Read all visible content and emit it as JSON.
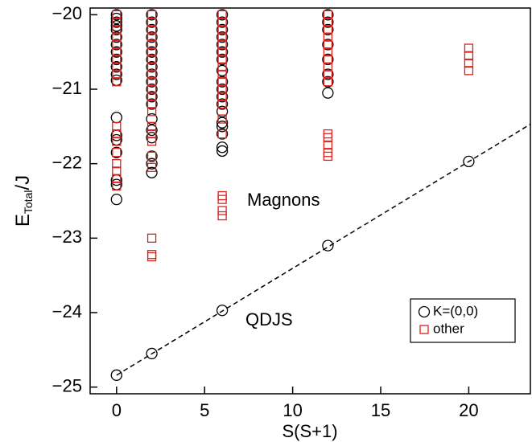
{
  "chart_data": {
    "type": "scatter",
    "xlabel": "S(S+1)",
    "ylabel": {
      "base": "E",
      "subscript": "Total",
      "rest": "/J"
    },
    "xlim": [
      -1.5,
      23.5
    ],
    "ylim": [
      -25.09,
      -19.91
    ],
    "xticks": [
      0,
      5,
      10,
      15,
      20
    ],
    "yticks": [
      {
        "value": -25,
        "label": "−25"
      },
      {
        "value": -24,
        "label": "−24"
      },
      {
        "value": -23,
        "label": "−23"
      },
      {
        "value": -22,
        "label": "−22"
      },
      {
        "value": -21,
        "label": "−21"
      },
      {
        "value": -20,
        "label": "−20"
      }
    ],
    "legend": "lower right",
    "annotations": [
      "Magnons",
      "QDJS"
    ],
    "reference_line": {
      "x": [
        0,
        23.5
      ],
      "y": [
        -24.84,
        -21.47
      ],
      "style": "dashed",
      "color": "#000000"
    },
    "series": [
      {
        "name": "K=(0,0)",
        "marker": "circle",
        "color": "#000000",
        "x": [
          0,
          0,
          0,
          0,
          0,
          0,
          0,
          0,
          0,
          0,
          0,
          0,
          0,
          0,
          0,
          0,
          0,
          0,
          0,
          0,
          2,
          2,
          2,
          2,
          2,
          2,
          2,
          2,
          2,
          2,
          2,
          2,
          2,
          2,
          2,
          2,
          2,
          2,
          2,
          2,
          6,
          6,
          6,
          6,
          6,
          6,
          6,
          6,
          6,
          6,
          6,
          6,
          6,
          6,
          6,
          6,
          6,
          6,
          6,
          12,
          12,
          12,
          12,
          12,
          12,
          12,
          12,
          12,
          20
        ],
        "y": [
          -20.0,
          -20.05,
          -20.1,
          -20.15,
          -20.2,
          -20.3,
          -20.4,
          -20.5,
          -20.6,
          -20.7,
          -20.8,
          -20.88,
          -21.38,
          -21.62,
          -21.68,
          -21.85,
          -22.22,
          -22.28,
          -22.48,
          -24.84,
          -20.0,
          -20.1,
          -20.2,
          -20.3,
          -20.4,
          -20.5,
          -20.6,
          -20.7,
          -20.8,
          -20.9,
          -21.0,
          -21.1,
          -21.2,
          -21.4,
          -21.55,
          -21.65,
          -21.9,
          -22.0,
          -22.12,
          -24.55,
          -20.0,
          -20.1,
          -20.2,
          -20.3,
          -20.4,
          -20.5,
          -20.6,
          -20.75,
          -20.9,
          -21.0,
          -21.1,
          -21.2,
          -21.3,
          -21.45,
          -21.5,
          -21.6,
          -21.78,
          -21.83,
          -23.97,
          -20.0,
          -20.1,
          -20.2,
          -20.4,
          -20.6,
          -20.8,
          -20.9,
          -21.05,
          -23.1,
          -21.97
        ]
      },
      {
        "name": "other",
        "marker": "square",
        "color": "#e0201b",
        "x": [
          0,
          0,
          0,
          0,
          0,
          0,
          0,
          0,
          0,
          0,
          0,
          0,
          0,
          0,
          0,
          0,
          0,
          0,
          2,
          2,
          2,
          2,
          2,
          2,
          2,
          2,
          2,
          2,
          2,
          2,
          2,
          2,
          2,
          2,
          2,
          2,
          2,
          2,
          2,
          2,
          6,
          6,
          6,
          6,
          6,
          6,
          6,
          6,
          6,
          6,
          6,
          6,
          6,
          6,
          6,
          6,
          6,
          6,
          6,
          12,
          12,
          12,
          12,
          12,
          12,
          12,
          12,
          12,
          12,
          12,
          12,
          12,
          12,
          12,
          20,
          20,
          20,
          20
        ],
        "y": [
          -20.0,
          -20.1,
          -20.2,
          -20.3,
          -20.4,
          -20.5,
          -20.6,
          -20.7,
          -20.8,
          -20.9,
          -21.5,
          -21.6,
          -21.7,
          -21.85,
          -22.0,
          -22.1,
          -22.2,
          -22.3,
          -20.0,
          -20.1,
          -20.2,
          -20.3,
          -20.4,
          -20.5,
          -20.6,
          -20.7,
          -20.8,
          -20.9,
          -21.0,
          -21.1,
          -21.2,
          -21.3,
          -21.5,
          -21.6,
          -21.7,
          -21.9,
          -22.05,
          -23.0,
          -23.22,
          -23.25,
          -20.0,
          -20.1,
          -20.2,
          -20.3,
          -20.4,
          -20.5,
          -20.6,
          -20.7,
          -20.8,
          -20.9,
          -21.0,
          -21.1,
          -21.2,
          -21.4,
          -21.6,
          -22.43,
          -22.48,
          -22.63,
          -22.7,
          -20.0,
          -20.1,
          -20.2,
          -20.3,
          -20.4,
          -20.5,
          -20.6,
          -20.7,
          -20.8,
          -20.9,
          -21.6,
          -21.65,
          -21.75,
          -21.85,
          -21.9,
          -20.45,
          -20.55,
          -20.65,
          -20.75
        ]
      }
    ]
  }
}
